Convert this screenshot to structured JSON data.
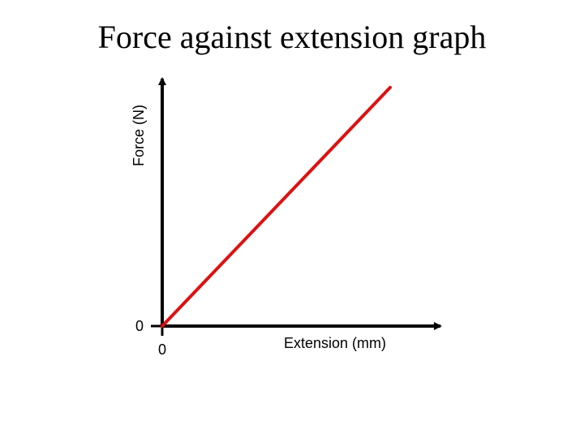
{
  "chart_data": {
    "type": "line",
    "title": "Force against extension graph",
    "xlabel": "Extension (mm)",
    "ylabel": "Force (N)",
    "x_ticks": [
      "0"
    ],
    "y_ticks": [
      "0"
    ],
    "x": [
      0,
      1
    ],
    "series": [
      {
        "values": [
          0,
          1
        ]
      }
    ],
    "xlim": [
      0,
      1.21
    ],
    "ylim": [
      0,
      1.02
    ],
    "grid": false,
    "colors": {
      "line": "#dd1111",
      "axis": "#000000"
    }
  }
}
